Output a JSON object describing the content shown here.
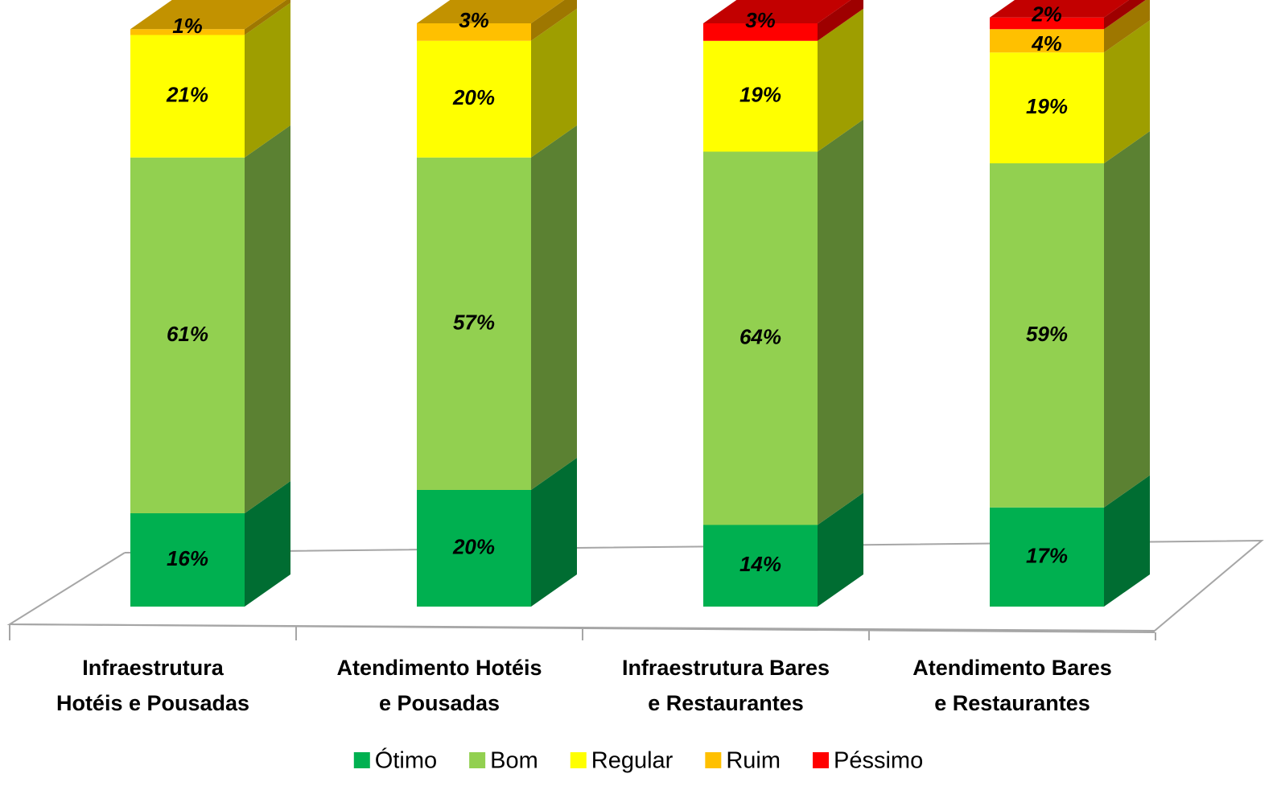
{
  "chart_data": {
    "type": "stacked_bar_3d",
    "categories": [
      "Infraestrutura Hotéis e Pousadas",
      "Atendimento Hotéis e Pousadas",
      "Infraestrutura Bares e Restaurantes",
      "Atendimento Bares e Restaurantes"
    ],
    "series": [
      {
        "name": "Ótimo",
        "color": "#00b050",
        "values": [
          16,
          20,
          14,
          17
        ],
        "value_labels": [
          "16%",
          "20%",
          "14%",
          "17%"
        ]
      },
      {
        "name": "Bom",
        "color": "#92d050",
        "values": [
          61,
          57,
          64,
          59
        ],
        "value_labels": [
          "61%",
          "57%",
          "64%",
          "59%"
        ]
      },
      {
        "name": "Regular",
        "color": "#ffff00",
        "values": [
          21,
          20,
          19,
          19
        ],
        "value_labels": [
          "21%",
          "20%",
          "19%",
          "19%"
        ]
      },
      {
        "name": "Ruim",
        "color": "#ffc000",
        "values": [
          1,
          3,
          0,
          4
        ],
        "value_labels": [
          "1%",
          "3%",
          "0%",
          "4%"
        ]
      },
      {
        "name": "Péssimo",
        "color": "#ff0000",
        "values": [
          0,
          0,
          3,
          2
        ],
        "value_labels": [
          "0%",
          "0%",
          "3%",
          "2%"
        ]
      }
    ],
    "ylim": [
      0,
      100
    ],
    "legend": "bottom"
  }
}
